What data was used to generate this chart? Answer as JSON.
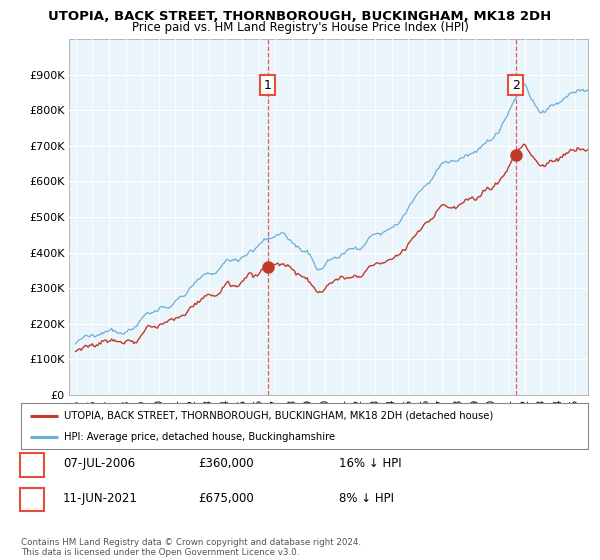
{
  "title": "UTOPIA, BACK STREET, THORNBOROUGH, BUCKINGHAM, MK18 2DH",
  "subtitle": "Price paid vs. HM Land Registry's House Price Index (HPI)",
  "legend_line1": "UTOPIA, BACK STREET, THORNBOROUGH, BUCKINGHAM, MK18 2DH (detached house)",
  "legend_line2": "HPI: Average price, detached house, Buckinghamshire",
  "footnote": "Contains HM Land Registry data © Crown copyright and database right 2024.\nThis data is licensed under the Open Government Licence v3.0.",
  "sale1_date": "07-JUL-2006",
  "sale1_price": 360000,
  "sale1_pct": "16% ↓ HPI",
  "sale2_date": "11-JUN-2021",
  "sale2_price": 675000,
  "sale2_pct": "8% ↓ HPI",
  "hpi_color": "#6baed6",
  "hpi_fill_color": "#d6eaf8",
  "price_color": "#c0392b",
  "sale_marker_color": "#c0392b",
  "vline_color": "#e74c3c",
  "ylim": [
    0,
    1000000
  ],
  "yticks": [
    0,
    100000,
    200000,
    300000,
    400000,
    500000,
    600000,
    700000,
    800000,
    900000
  ],
  "ytick_labels": [
    "£0",
    "£100K",
    "£200K",
    "£300K",
    "£400K",
    "£500K",
    "£600K",
    "£700K",
    "£800K",
    "£900K"
  ],
  "background_color": "#ffffff",
  "grid_color": "#cccccc",
  "plot_bg_color": "#eaf4fb"
}
